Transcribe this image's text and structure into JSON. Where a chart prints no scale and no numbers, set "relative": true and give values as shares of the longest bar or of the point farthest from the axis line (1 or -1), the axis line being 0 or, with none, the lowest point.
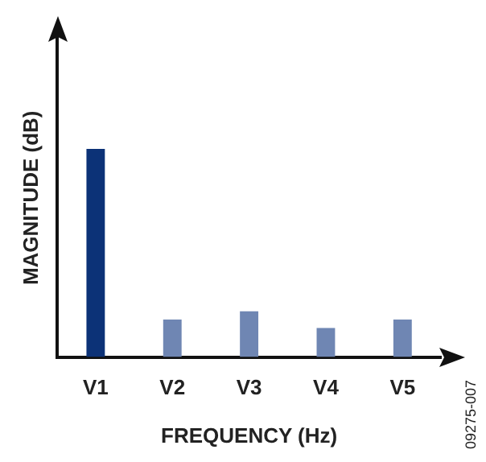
{
  "chart_data": {
    "type": "bar",
    "relative": true,
    "xlabel": "FREQUENCY (Hz)",
    "ylabel": "MAGNITUDE (dB)",
    "categories": [
      "V1",
      "V2",
      "V3",
      "V4",
      "V5"
    ],
    "values": [
      1,
      0.18,
      0.22,
      0.14,
      0.18
    ],
    "colors": [
      "#0c3277",
      "#6f86b3",
      "#6f86b3",
      "#6f86b3",
      "#6f86b3"
    ],
    "annotations": [
      "09275-007"
    ],
    "legend": false,
    "grid": false
  }
}
